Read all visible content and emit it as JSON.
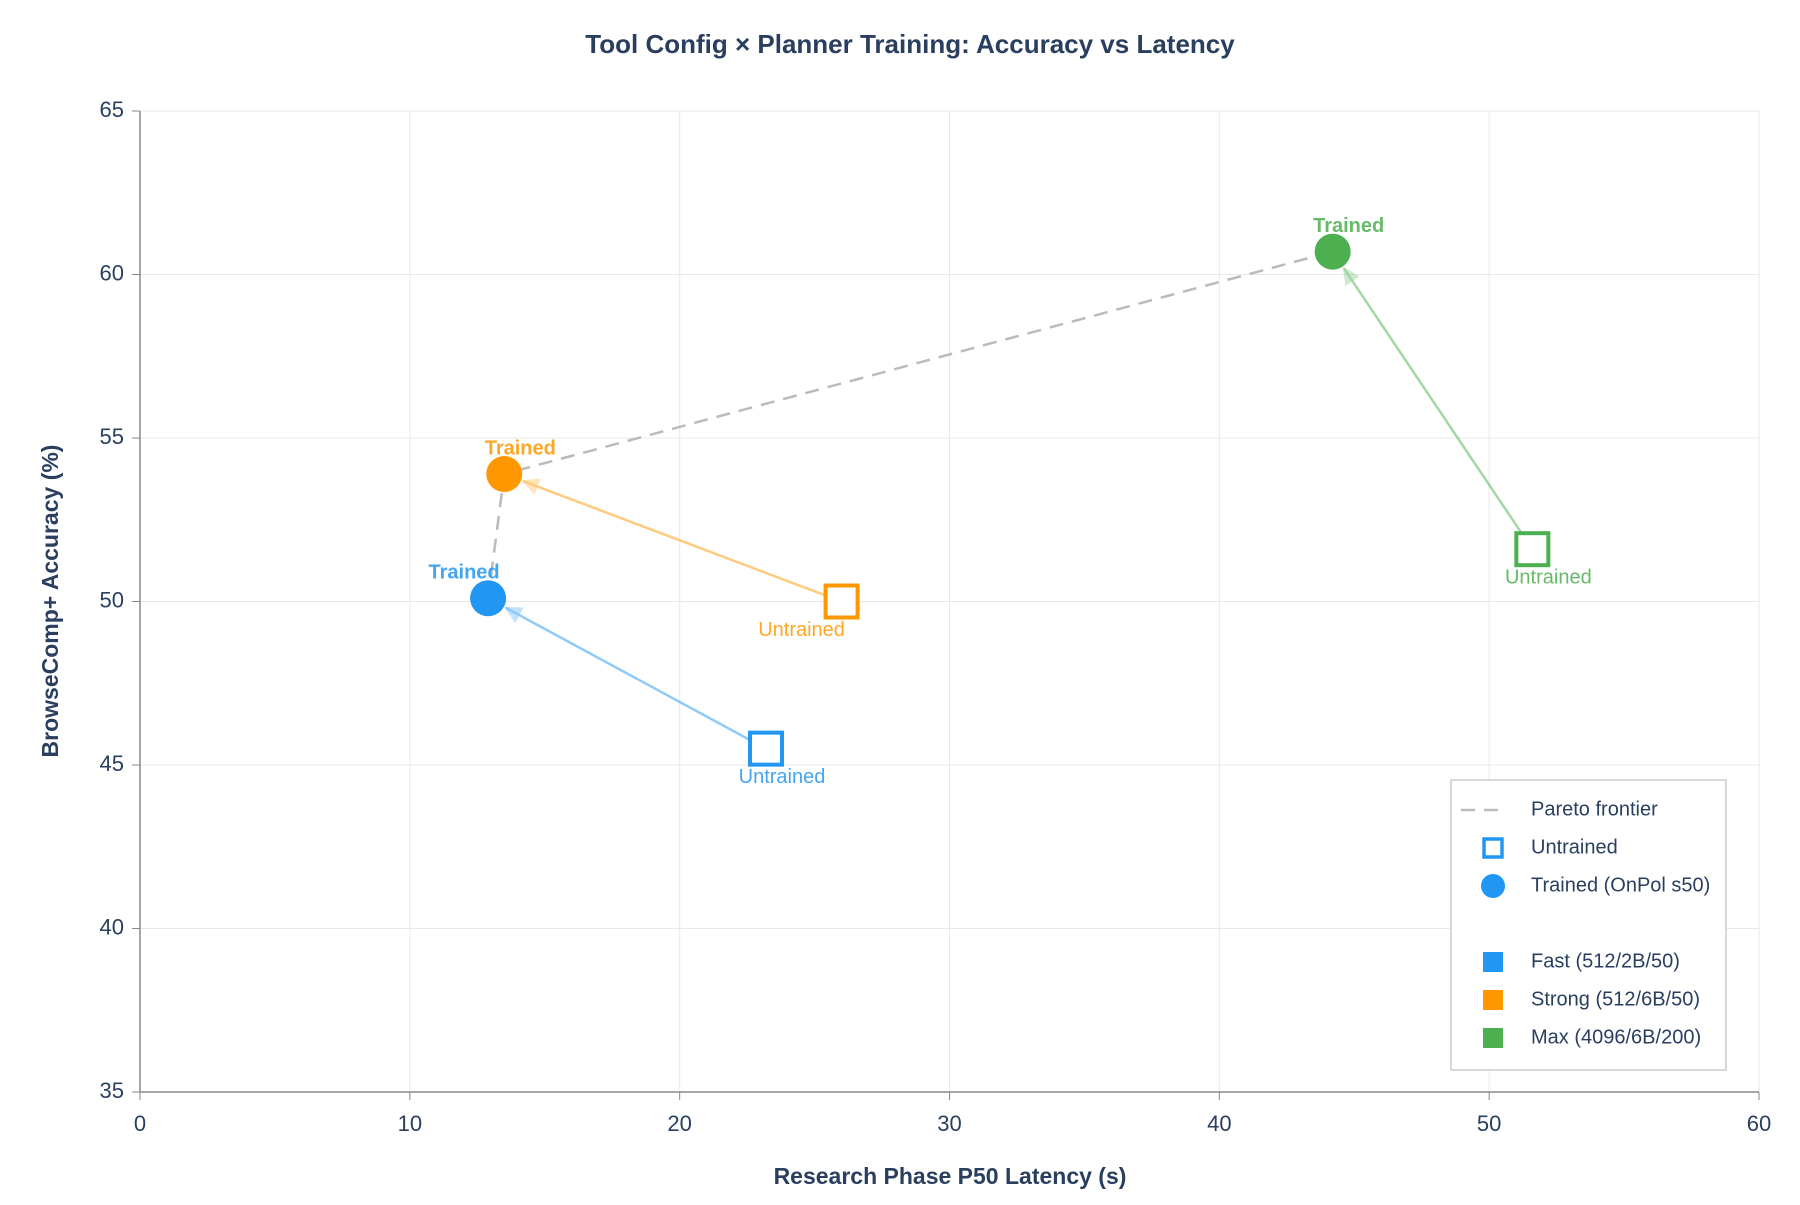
{
  "chart_data": {
    "type": "scatter",
    "title": "Tool Config × Planner Training: Accuracy vs Latency",
    "x_label": "Research Phase P50 Latency (s)",
    "y_label": "BrowseComp+ Accuracy (%)",
    "xlim": [
      0,
      60
    ],
    "xticks": [
      0,
      10,
      20,
      30,
      40,
      50,
      60
    ],
    "ylim": [
      35,
      65
    ],
    "yticks": [
      35,
      40,
      45,
      50,
      55,
      60,
      65
    ],
    "grid": true,
    "legend": "lower right",
    "legend_markers": [
      "Untrained",
      "Trained (OnPol s50)"
    ],
    "pareto": {
      "name": "Pareto frontier",
      "color": "#bbbbbb",
      "x": [
        12.9,
        13.5,
        44.2
      ],
      "y": [
        50.1,
        53.9,
        60.7
      ]
    },
    "series": [
      {
        "name": "Fast (512/2B/50)",
        "color": "#2196f3",
        "x": [
          23.2,
          12.9
        ],
        "y": [
          45.5,
          50.1
        ],
        "point_labels": [
          "Untrained",
          "Trained"
        ]
      },
      {
        "name": "Strong (512/6B/50)",
        "color": "#ff9800",
        "x": [
          26.0,
          13.5
        ],
        "y": [
          50.0,
          53.9
        ],
        "point_labels": [
          "Untrained",
          "Trained"
        ]
      },
      {
        "name": "Max (4096/6B/200)",
        "color": "#4caf50",
        "x": [
          51.6,
          44.2
        ],
        "y": [
          51.6,
          60.7
        ],
        "point_labels": [
          "Untrained",
          "Trained"
        ]
      }
    ]
  }
}
